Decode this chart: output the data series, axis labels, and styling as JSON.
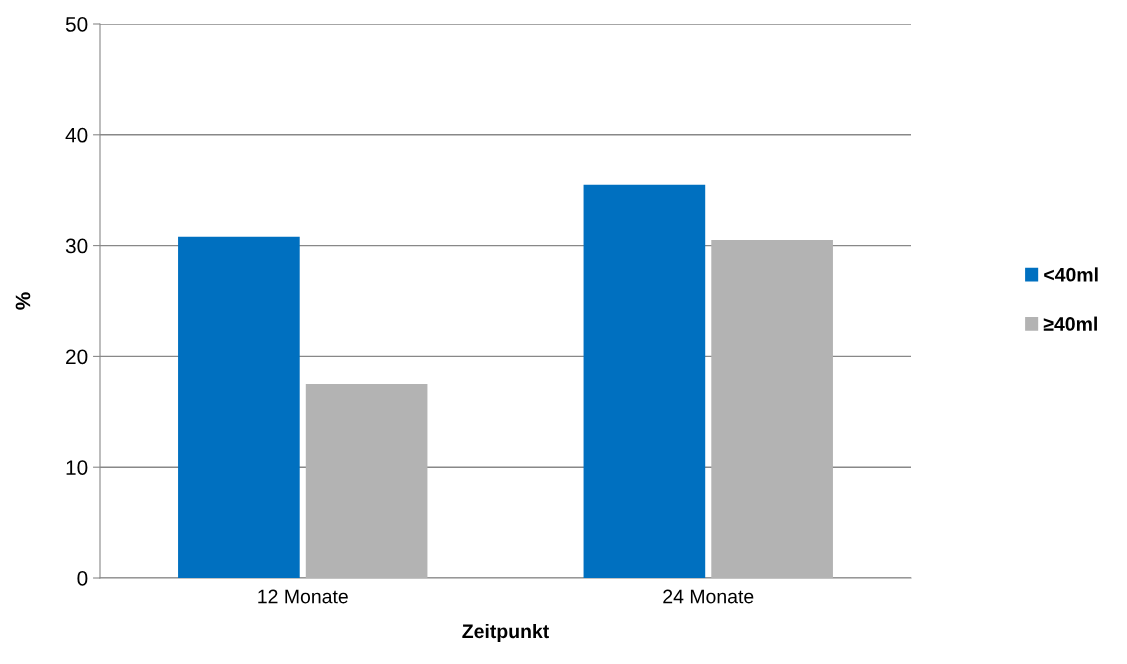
{
  "chart_data": {
    "type": "bar",
    "xlabel": "Zeitpunkt",
    "ylabel": "%",
    "categories": [
      "12 Monate",
      "24 Monate"
    ],
    "series": [
      {
        "name": "<40ml",
        "color": "#0070c0",
        "values": [
          30.8,
          35.5
        ]
      },
      {
        "name": "≥40ml",
        "color": "#b3b3b3",
        "values": [
          17.5,
          30.5
        ]
      }
    ],
    "ylim": [
      0,
      50
    ],
    "yticks": [
      0,
      10,
      20,
      30,
      40,
      50
    ],
    "grid": "y",
    "legend": "right"
  }
}
